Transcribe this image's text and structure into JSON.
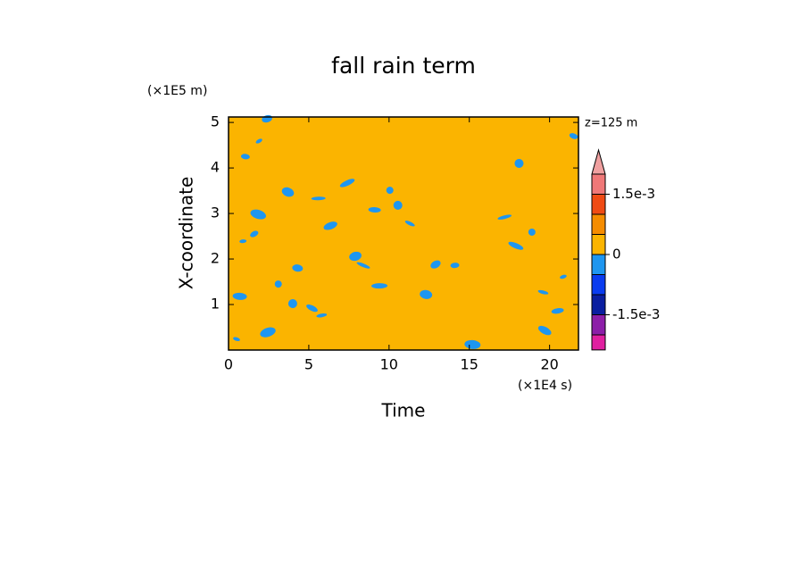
{
  "chart_data": {
    "type": "contour",
    "title": "fall rain term",
    "annotation": "z=125 m",
    "x_label": "Time",
    "y_label": "X-coordinate",
    "x_unit": "(×1E4 s)",
    "y_unit": "(×1E5 m)",
    "xlim": [
      0,
      21.8
    ],
    "ylim": [
      0,
      5.12
    ],
    "xticks": [
      0,
      5,
      10,
      15,
      20
    ],
    "yticks": [
      1,
      2,
      3,
      4,
      5
    ],
    "field_color": "#fbb400",
    "patch_color": "#1e96f0",
    "patches": {
      "x": [
        1.9,
        1.05,
        2.4,
        3.7,
        5.6,
        7.4,
        10.05,
        10.55,
        11.3,
        9.1,
        6.35,
        1.85,
        0.9,
        1.6,
        4.3,
        7.9,
        8.4,
        9.4,
        3.1,
        4.0,
        5.8,
        5.2,
        0.7,
        2.45,
        0.5,
        14.1,
        12.9,
        12.3,
        17.2,
        17.9,
        18.9,
        18.1,
        19.6,
        20.5,
        19.7,
        15.2,
        20.85,
        21.5
      ],
      "y": [
        4.59,
        4.25,
        5.08,
        3.47,
        3.33,
        3.67,
        3.51,
        3.18,
        2.78,
        3.08,
        2.73,
        2.98,
        2.39,
        2.55,
        1.8,
        2.06,
        1.86,
        1.41,
        1.45,
        1.02,
        0.76,
        0.92,
        1.18,
        0.39,
        0.24,
        1.86,
        1.88,
        1.22,
        2.92,
        2.29,
        2.59,
        4.1,
        1.27,
        0.86,
        0.43,
        0.12,
        1.61,
        4.7
      ]
    },
    "colorbar": {
      "levels": [
        -0.002,
        -0.0015,
        -0.001,
        -0.0005,
        0,
        0.0005,
        0.001,
        0.0015,
        0.002
      ],
      "colors": [
        "#e020a0",
        "#8c1ea8",
        "#0a1ea0",
        "#0a3cf0",
        "#1e96f0",
        "#fbb400",
        "#f58c00",
        "#f04b14",
        "#f07878",
        "#f0a0a0"
      ],
      "ticks": [
        {
          "value": 0.0015,
          "label": "1.5e-3"
        },
        0,
        {
          "value": -0.0015,
          "label": "-1.5e-3"
        }
      ]
    }
  }
}
